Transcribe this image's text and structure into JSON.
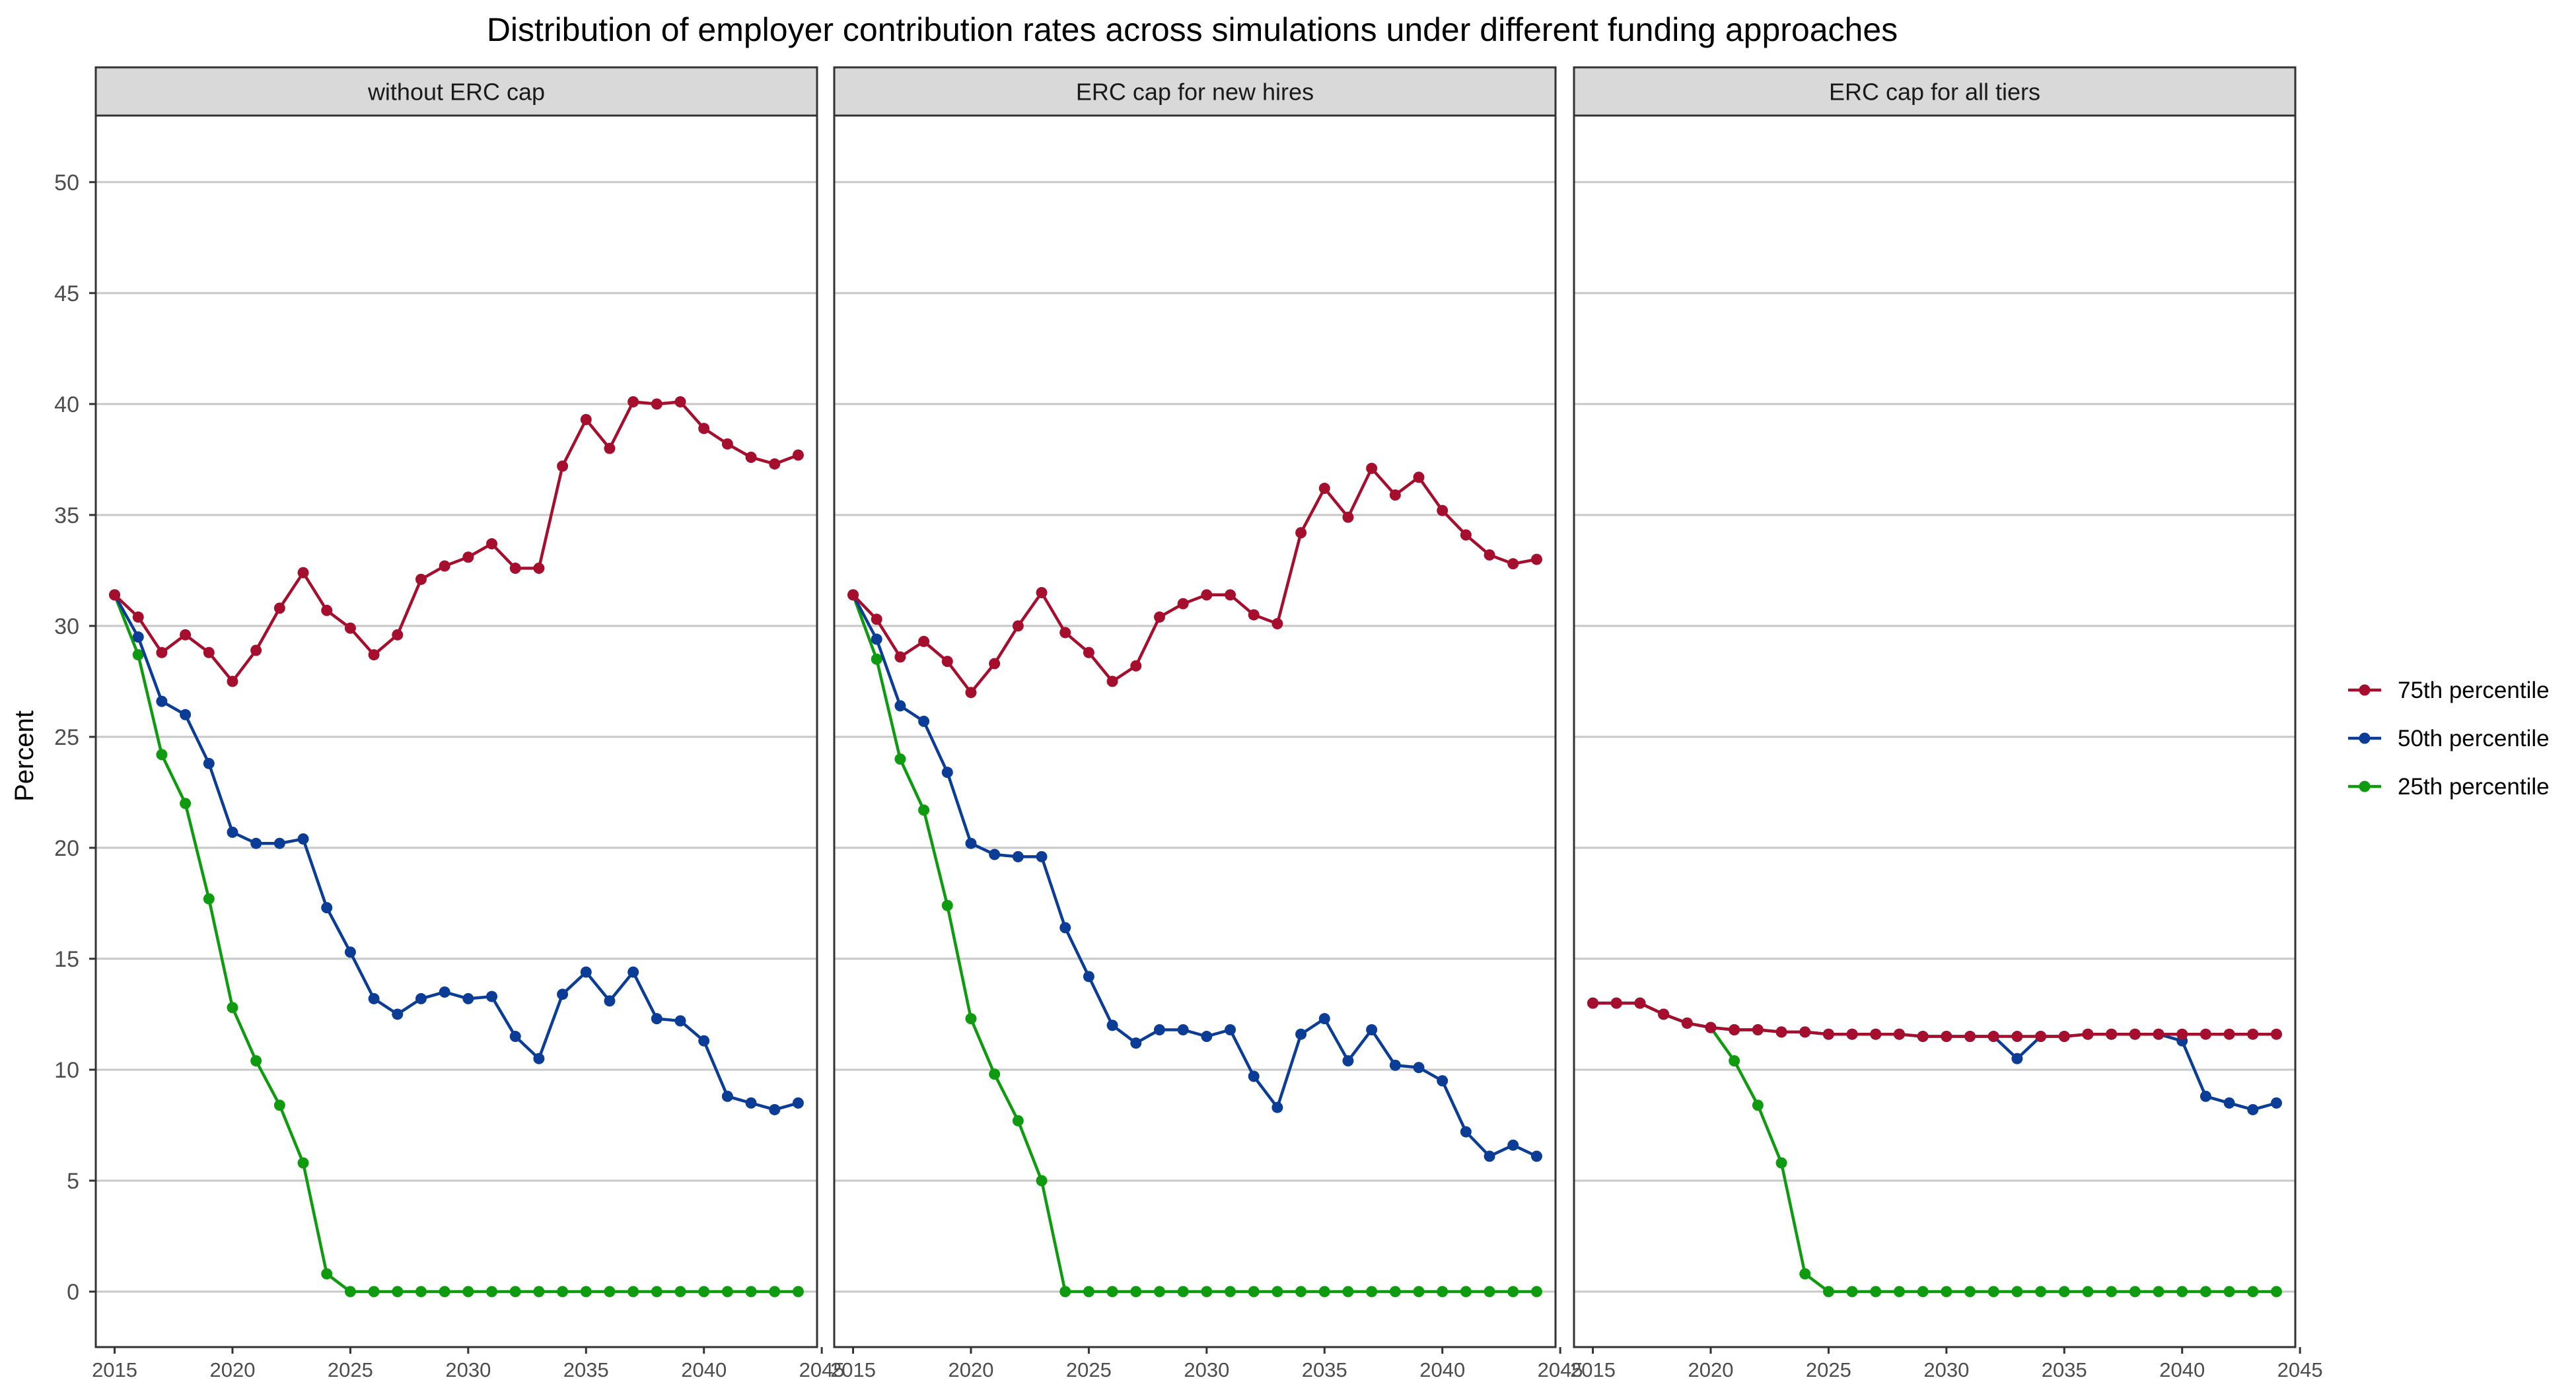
{
  "chart_data": {
    "type": "line",
    "title": "Distribution of employer contribution rates across simulations under different funding approaches",
    "ylabel": "Percent",
    "xlabel": "",
    "xlim": [
      2014.2,
      2044.8
    ],
    "ylim": [
      -2.5,
      53
    ],
    "x_ticks": [
      2015,
      2020,
      2025,
      2030,
      2035,
      2040,
      2045
    ],
    "y_ticks": [
      0,
      5,
      10,
      15,
      20,
      25,
      30,
      35,
      40,
      45,
      50
    ],
    "grid": "horizontal major",
    "legend_position": "right",
    "legend": [
      {
        "key": "p75",
        "label": "75th percentile",
        "color": "#A50F2D"
      },
      {
        "key": "p50",
        "label": "50th percentile",
        "color": "#0B3D96"
      },
      {
        "key": "p25",
        "label": "25th percentile",
        "color": "#0F9B0F"
      }
    ],
    "x": [
      2015,
      2016,
      2017,
      2018,
      2019,
      2020,
      2021,
      2022,
      2023,
      2024,
      2025,
      2026,
      2027,
      2028,
      2029,
      2030,
      2031,
      2032,
      2033,
      2034,
      2035,
      2036,
      2037,
      2038,
      2039,
      2040,
      2041,
      2042,
      2043,
      2044
    ],
    "panels": [
      {
        "strip": "without ERC cap",
        "series": [
          {
            "key": "p75",
            "name": "75th percentile",
            "values": [
              31.4,
              30.4,
              28.8,
              29.6,
              28.8,
              27.5,
              28.9,
              30.8,
              32.4,
              30.7,
              29.9,
              28.7,
              29.6,
              32.1,
              32.7,
              33.1,
              33.7,
              32.6,
              32.6,
              37.2,
              39.3,
              38.0,
              40.1,
              40.0,
              40.1,
              38.9,
              38.2,
              37.6,
              37.3,
              37.7
            ]
          },
          {
            "key": "p50",
            "name": "50th percentile",
            "values": [
              31.4,
              29.5,
              26.6,
              26.0,
              23.8,
              20.7,
              20.2,
              20.2,
              20.4,
              17.3,
              15.3,
              13.2,
              12.5,
              13.2,
              13.5,
              13.2,
              13.3,
              11.5,
              10.5,
              13.4,
              14.4,
              13.1,
              14.4,
              12.3,
              12.2,
              11.3,
              8.8,
              8.5,
              8.2,
              8.5
            ]
          },
          {
            "key": "p25",
            "name": "25th percentile",
            "values": [
              31.4,
              28.7,
              24.2,
              22.0,
              17.7,
              12.8,
              10.4,
              8.4,
              5.8,
              0.8,
              0,
              0,
              0,
              0,
              0,
              0,
              0,
              0,
              0,
              0,
              0,
              0,
              0,
              0,
              0,
              0,
              0,
              0,
              0,
              0
            ]
          }
        ]
      },
      {
        "strip": "ERC cap for new hires",
        "series": [
          {
            "key": "p75",
            "name": "75th percentile",
            "values": [
              31.4,
              30.3,
              28.6,
              29.3,
              28.4,
              27.0,
              28.3,
              30.0,
              31.5,
              29.7,
              28.8,
              27.5,
              28.2,
              30.4,
              31.0,
              31.4,
              31.4,
              30.5,
              30.1,
              34.2,
              36.2,
              34.9,
              37.1,
              35.9,
              36.7,
              35.2,
              34.1,
              33.2,
              32.8,
              33.0
            ]
          },
          {
            "key": "p50",
            "name": "50th percentile",
            "values": [
              31.4,
              29.4,
              26.4,
              25.7,
              23.4,
              20.2,
              19.7,
              19.6,
              19.6,
              16.4,
              14.2,
              12.0,
              11.2,
              11.8,
              11.8,
              11.5,
              11.8,
              9.7,
              8.3,
              11.6,
              12.3,
              10.4,
              11.8,
              10.2,
              10.1,
              9.5,
              7.2,
              6.1,
              6.6,
              6.1
            ]
          },
          {
            "key": "p25",
            "name": "25th percentile",
            "values": [
              31.4,
              28.5,
              24.0,
              21.7,
              17.4,
              12.3,
              9.8,
              7.7,
              5.0,
              0,
              0,
              0,
              0,
              0,
              0,
              0,
              0,
              0,
              0,
              0,
              0,
              0,
              0,
              0,
              0,
              0,
              0,
              0,
              0,
              0
            ]
          }
        ]
      },
      {
        "strip": "ERC cap for all tiers",
        "series": [
          {
            "key": "p75",
            "name": "75th percentile",
            "values": [
              13.0,
              13.0,
              13.0,
              12.5,
              12.1,
              11.9,
              11.8,
              11.8,
              11.7,
              11.7,
              11.6,
              11.6,
              11.6,
              11.6,
              11.5,
              11.5,
              11.5,
              11.5,
              11.5,
              11.5,
              11.5,
              11.6,
              11.6,
              11.6,
              11.6,
              11.6,
              11.6,
              11.6,
              11.6,
              11.6
            ]
          },
          {
            "key": "p50",
            "name": "50th percentile",
            "values": [
              13.0,
              13.0,
              13.0,
              12.5,
              12.1,
              11.9,
              11.8,
              11.8,
              11.7,
              11.7,
              11.6,
              11.6,
              11.6,
              11.6,
              11.5,
              11.5,
              11.5,
              11.5,
              10.5,
              11.5,
              11.5,
              11.6,
              11.6,
              11.6,
              11.6,
              11.3,
              8.8,
              8.5,
              8.2,
              8.5
            ]
          },
          {
            "key": "p25",
            "name": "25th percentile",
            "values": [
              13.0,
              13.0,
              13.0,
              12.5,
              12.1,
              11.9,
              10.4,
              8.4,
              5.8,
              0.8,
              0,
              0,
              0,
              0,
              0,
              0,
              0,
              0,
              0,
              0,
              0,
              0,
              0,
              0,
              0,
              0,
              0,
              0,
              0,
              0
            ]
          }
        ]
      }
    ]
  }
}
